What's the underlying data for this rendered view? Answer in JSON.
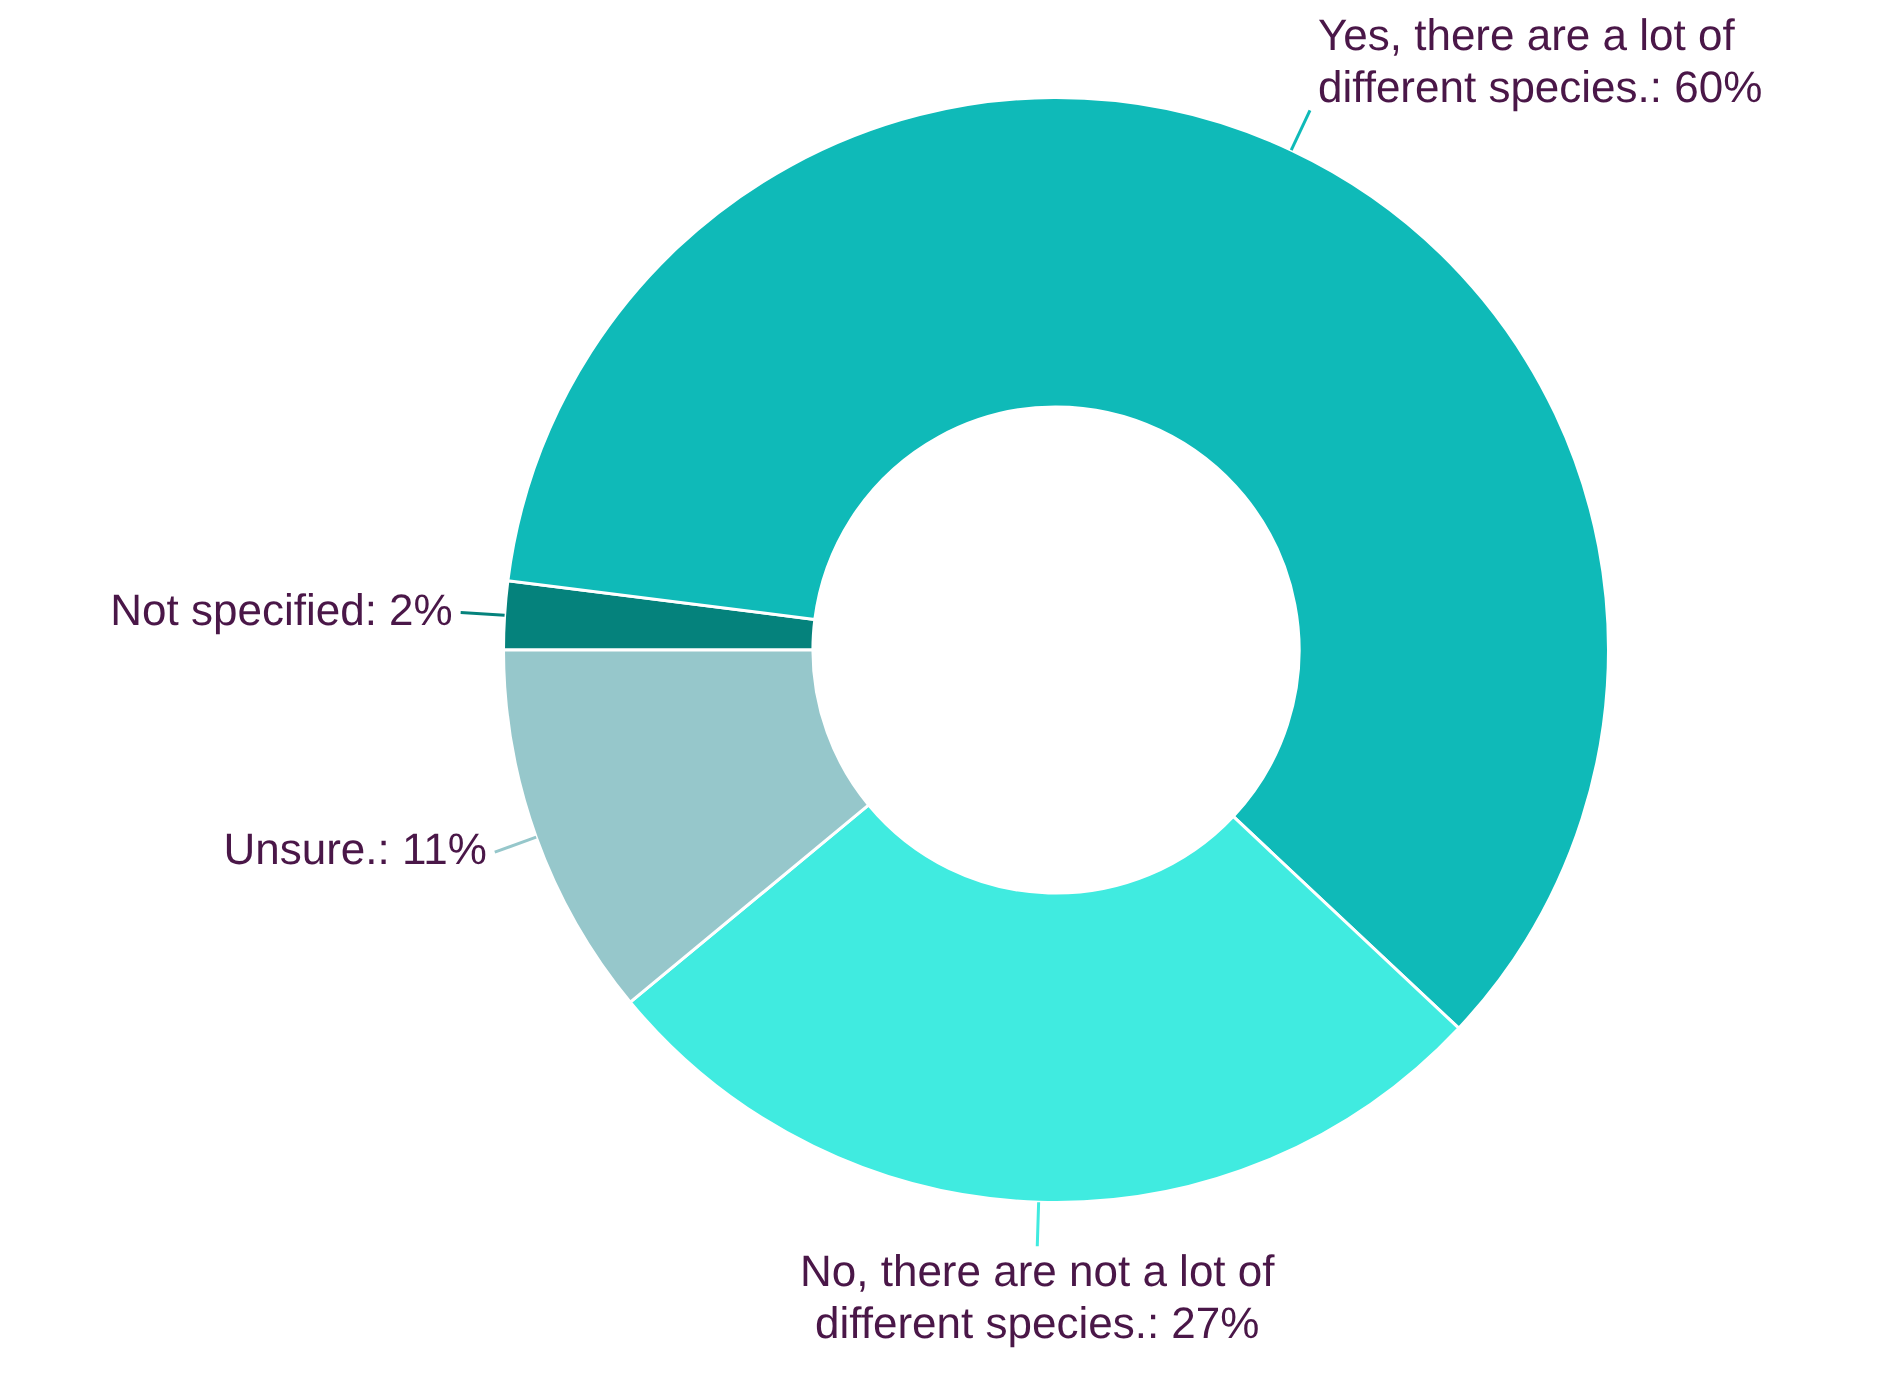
{
  "chart_data": {
    "type": "donut",
    "categories": [
      "Not specified",
      "Yes, there are a lot of different species.",
      "No, there are not a lot of different species.",
      "Unsure."
    ],
    "values": [
      2,
      60,
      27,
      11
    ],
    "value_labels": [
      ": 2%",
      ": 60%",
      ": 27%",
      ": 11%"
    ],
    "colors": [
      "#05827c",
      "#0fbab8",
      "#40ebe0",
      "#96c7cb"
    ],
    "legend": false
  }
}
